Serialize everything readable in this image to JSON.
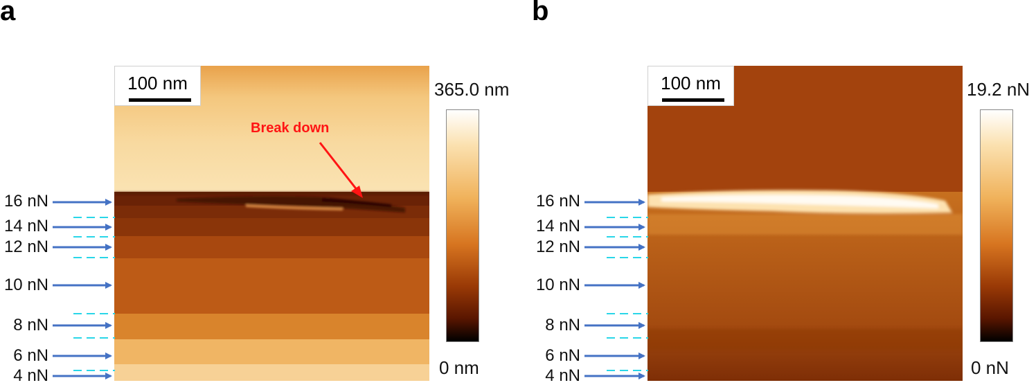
{
  "panels": [
    {
      "letter": "a",
      "scale_bar": "100 nm",
      "colorbar_max": "365.0 nm",
      "colorbar_min": "0 nm",
      "annotation": "Break down"
    },
    {
      "letter": "b",
      "scale_bar": "100 nm",
      "colorbar_max": "19.2 nN",
      "colorbar_min": "0 nN"
    }
  ],
  "force_labels": [
    "16 nN",
    "14 nN",
    "12 nN",
    "10 nN",
    "8 nN",
    "6 nN",
    "4 nN"
  ],
  "colors": {
    "arrow": "#4472c4",
    "dash": "#29d6e8",
    "annotation": "#ff1414",
    "colormap": [
      "#000000",
      "#5a1600",
      "#9a3a06",
      "#d77520",
      "#f0b25b",
      "#fbe1b0",
      "#ffffff"
    ]
  }
}
